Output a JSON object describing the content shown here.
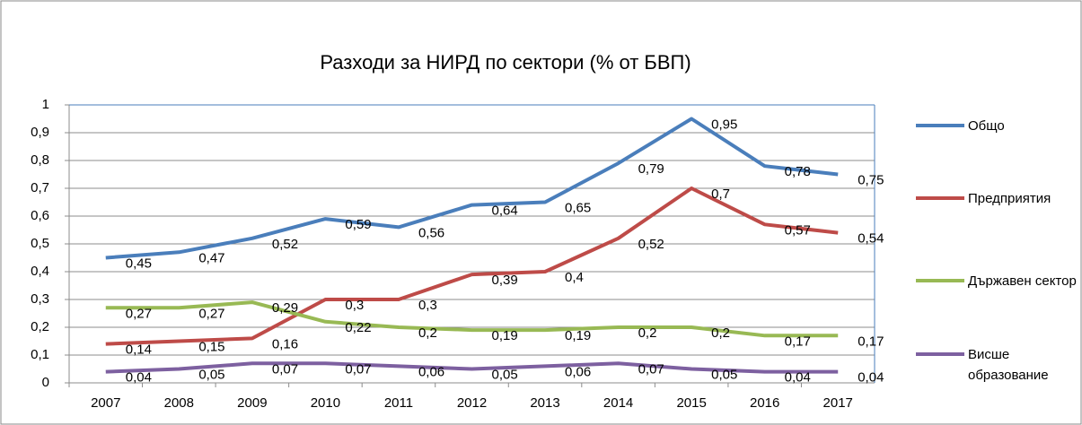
{
  "chart_data": {
    "type": "line",
    "title": "Разходи за НИРД по сектори (% от БВП)",
    "categories": [
      "2007",
      "2008",
      "2009",
      "2010",
      "2011",
      "2012",
      "2013",
      "2014",
      "2015",
      "2016",
      "2017"
    ],
    "series": [
      {
        "name": "Общо",
        "color": "#4a7ebb",
        "values": [
          0.45,
          0.47,
          0.52,
          0.59,
          0.56,
          0.64,
          0.65,
          0.79,
          0.95,
          0.78,
          0.75
        ],
        "value_labels": [
          "0,45",
          "0,47",
          "0,52",
          "0,59",
          "0,56",
          "0,64",
          "0,65",
          "0,79",
          "0,95",
          "0,78",
          "0,75"
        ]
      },
      {
        "name": "Предприятия",
        "color": "#be4b48",
        "values": [
          0.14,
          0.15,
          0.16,
          0.3,
          0.3,
          0.39,
          0.4,
          0.52,
          0.7,
          0.57,
          0.54
        ],
        "value_labels": [
          "0,14",
          "0,15",
          "0,16",
          "0,3",
          "0,3",
          "0,39",
          "0,4",
          "0,52",
          "0,7",
          "0,57",
          "0,54"
        ]
      },
      {
        "name": "Държавен сектор",
        "color": "#98b954",
        "values": [
          0.27,
          0.27,
          0.29,
          0.22,
          0.2,
          0.19,
          0.19,
          0.2,
          0.2,
          0.17,
          0.17
        ],
        "value_labels": [
          "0,27",
          "0,27",
          "0,29",
          "0,22",
          "0,2",
          "0,19",
          "0,19",
          "0,2",
          "0,2",
          "0,17",
          "0,17"
        ]
      },
      {
        "name": "Висше образование",
        "color": "#7d60a0",
        "values": [
          0.04,
          0.05,
          0.07,
          0.07,
          0.06,
          0.05,
          0.06,
          0.07,
          0.05,
          0.04,
          0.04
        ],
        "value_labels": [
          "0,04",
          "0,05",
          "0,07",
          "0,07",
          "0,06",
          "0,05",
          "0,06",
          "0,07",
          "0,05",
          "0,04",
          "0,04"
        ]
      }
    ],
    "ylim": [
      0,
      1
    ],
    "yticks": [
      0,
      {
        "value": 0.1,
        "label": "0,1"
      },
      {
        "value": 0.2,
        "label": "0,2"
      },
      {
        "value": 0.3,
        "label": "0,3"
      },
      {
        "value": 0.4,
        "label": "0,4"
      },
      {
        "value": 0.5,
        "label": "0,5"
      },
      {
        "value": 0.6,
        "label": "0,6"
      },
      {
        "value": 0.7,
        "label": "0,7"
      },
      {
        "value": 0.8,
        "label": "0,8"
      },
      {
        "value": 0.9,
        "label": "0,9"
      },
      1
    ],
    "grid": true,
    "legend": "right"
  }
}
